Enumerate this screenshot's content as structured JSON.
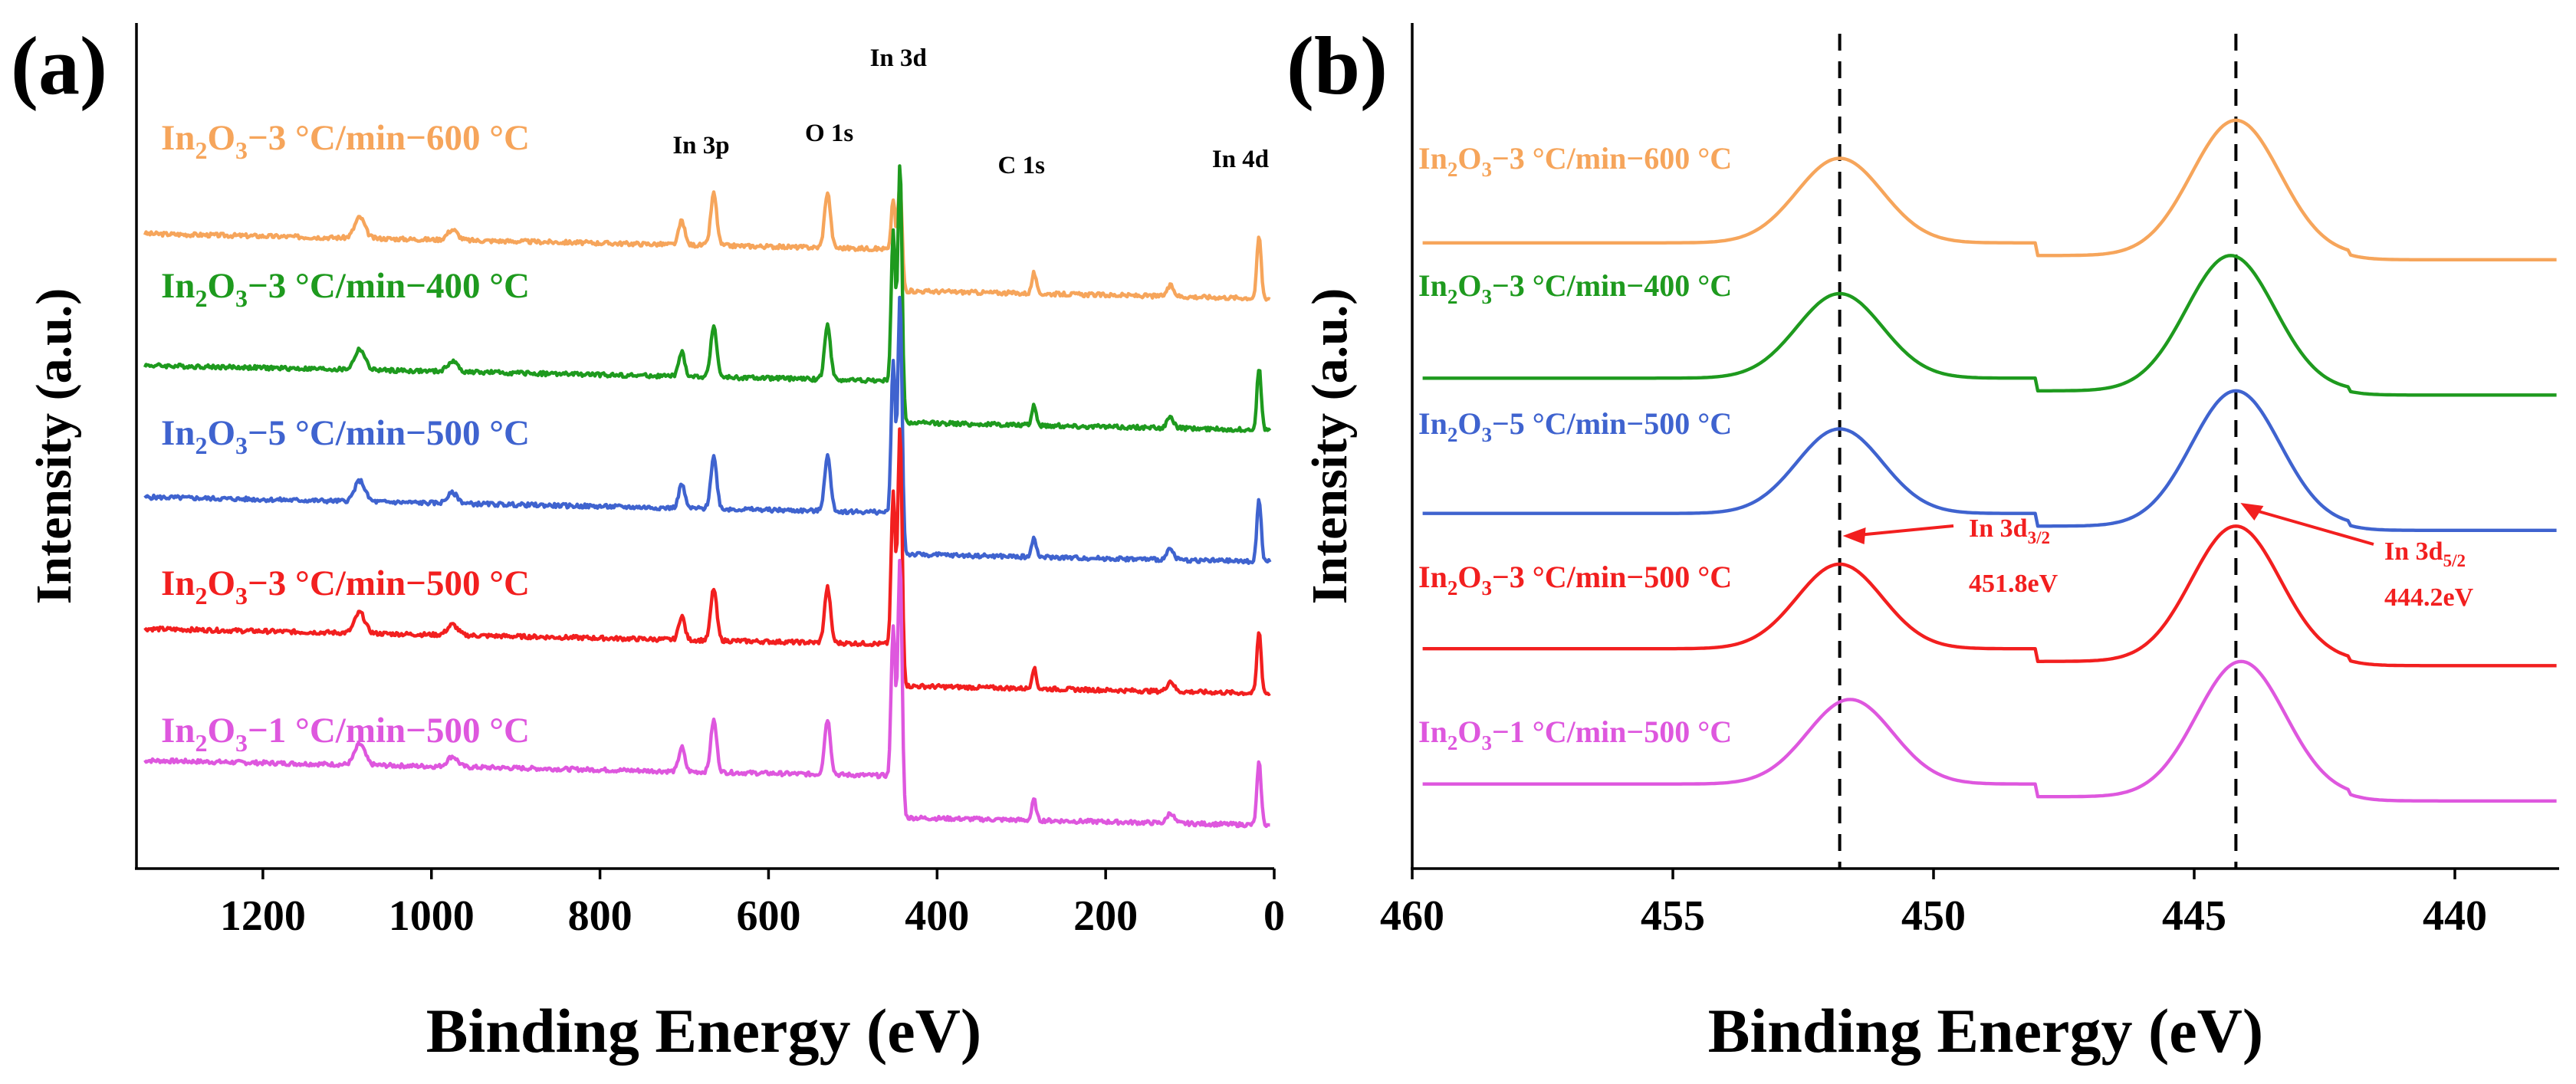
{
  "chart_data": [
    {
      "type": "line",
      "panel_label": "(a)",
      "xlabel": "Binding Energy (eV)",
      "ylabel": "Intensity (a.u.)",
      "xlim": [
        1350,
        0
      ],
      "x_ticks": [
        "1200",
        "1000",
        "800",
        "600",
        "400",
        "200",
        "0"
      ],
      "x_tick_values": [
        1200,
        1000,
        800,
        600,
        400,
        200,
        0
      ],
      "y_ticks": "none",
      "series": [
        {
          "name": "In2O3-3 °C/min-600 °C",
          "label_main": "In",
          "label_rest": "−3 °C/min−600 °C",
          "color": "#F6A55B",
          "baseline": 7.4,
          "tail_baseline": 6.8,
          "scale": 0.4
        },
        {
          "name": "In2O3-3 °C/min-400 °C",
          "label_main": "In",
          "label_rest": "−3 °C/min−400 °C",
          "color": "#1E9A1E",
          "baseline": 5.5,
          "tail_baseline": 4.9,
          "scale": 1.0
        },
        {
          "name": "In2O3-5 °C/min-500 °C",
          "label_main": "In",
          "label_rest": "−5 °C/min−500 °C",
          "color": "#3F63CF",
          "baseline": 3.6,
          "tail_baseline": 3.0,
          "scale": 1.0
        },
        {
          "name": "In2O3-3 °C/min-500 °C",
          "label_main": "In",
          "label_rest": "−3 °C/min−500 °C",
          "color": "#F21F1F",
          "baseline": 1.7,
          "tail_baseline": 1.1,
          "scale": 1.0
        },
        {
          "name": "In2O3-1 °C/min-500 °C",
          "label_main": "In",
          "label_rest": "−1 °C/min−500 °C",
          "color": "#DE57DE",
          "baseline": -0.2,
          "tail_baseline": -0.8,
          "scale": 1.0
        }
      ],
      "peaks": [
        {
          "energy": 1085,
          "height": 0.3,
          "width": 6
        },
        {
          "energy": 975,
          "height": 0.15,
          "width": 6
        },
        {
          "energy": 703,
          "height": 0.35,
          "width": 3.5
        },
        {
          "energy": 665,
          "height": 0.75,
          "width": 3.5
        },
        {
          "energy": 530,
          "height": 0.8,
          "width": 3.5
        },
        {
          "energy": 452,
          "height": 2.4,
          "width": 2.5
        },
        {
          "energy": 444,
          "height": 3.6,
          "width": 2.5
        },
        {
          "energy": 285,
          "height": 0.3,
          "width": 2.5
        },
        {
          "energy": 123,
          "height": 0.15,
          "width": 4
        },
        {
          "energy": 18,
          "height": 0.9,
          "width": 2.5
        }
      ],
      "annotations": [
        {
          "text": "In 3p",
          "x": 680
        },
        {
          "text": "O 1s",
          "x": 528
        },
        {
          "text": "In 3d",
          "x": 446
        },
        {
          "text": "C 1s",
          "x": 300
        },
        {
          "text": "In 4d",
          "x": 40
        }
      ]
    },
    {
      "type": "line",
      "panel_label": "(b)",
      "xlabel": "Binding Energy (eV)",
      "ylabel": "Intensity (a.u.)",
      "xlim": [
        460,
        438
      ],
      "x_ticks": [
        "460",
        "455",
        "450",
        "445",
        "440"
      ],
      "x_tick_values": [
        460,
        455,
        450,
        445,
        440
      ],
      "y_ticks": "none",
      "series": [
        {
          "name": "In2O3-3 °C/min-600 °C",
          "label_main": "In",
          "label_rest": "−3 °C/min−600 °C",
          "color": "#F6A55B",
          "baseline": 6.0,
          "peak1": 451.8,
          "peak2": 444.2
        },
        {
          "name": "In2O3-3 °C/min-400 °C",
          "label_main": "In",
          "label_rest": "−3 °C/min−400 °C",
          "color": "#1E9A1E",
          "baseline": 4.4,
          "peak1": 451.8,
          "peak2": 444.3
        },
        {
          "name": "In2O3-5 °C/min-500 °C",
          "label_main": "In",
          "label_rest": "−5 °C/min−500 °C",
          "color": "#3F63CF",
          "baseline": 2.8,
          "peak1": 451.8,
          "peak2": 444.2
        },
        {
          "name": "In2O3-3 °C/min-500 °C",
          "label_main": "In",
          "label_rest": "−3 °C/min−500 °C",
          "color": "#F21F1F",
          "baseline": 1.2,
          "peak1": 451.8,
          "peak2": 444.2
        },
        {
          "name": "In2O3-1 °C/min-500 °C",
          "label_main": "In",
          "label_rest": "−1 °C/min−500 °C",
          "color": "#DE57DE",
          "baseline": -0.4,
          "peak1": 451.6,
          "peak2": 444.1
        }
      ],
      "reference_lines": [
        451.8,
        444.2
      ],
      "annotations": [
        {
          "text": "In 3d",
          "sub": "3/2",
          "value": "451.8eV",
          "x": 451.8
        },
        {
          "text": "In 3d",
          "sub": "5/2",
          "value": "444.2eV",
          "x": 444.2
        }
      ]
    }
  ]
}
